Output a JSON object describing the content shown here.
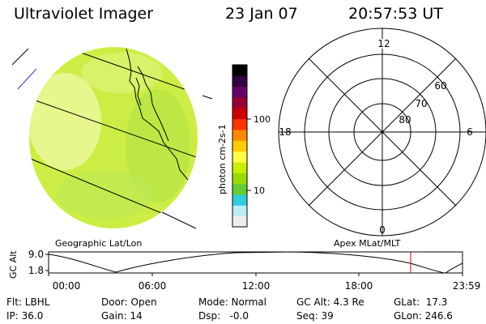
{
  "header": {
    "instrument": "Ultraviolet Imager",
    "date": "23 Jan 07",
    "time": "20:57:53 UT"
  },
  "colorbar": {
    "unit_label": "photon cm-2s-1",
    "tick_labels": [
      "100",
      "10"
    ],
    "colors": [
      "#eeeeee",
      "#bbeeee",
      "#33ccdd",
      "#66cc33",
      "#99dd00",
      "#ccee00",
      "#ffff44",
      "#ffcc00",
      "#ff8800",
      "#ff3300",
      "#cc0000",
      "#990033",
      "#660066",
      "#330044",
      "#000000"
    ]
  },
  "image_panel": {
    "caption": "Geographic Lat/Lon",
    "fill_color": "#ccee44"
  },
  "polar_plot": {
    "caption": "Apex MLat/MLT",
    "mlt_labels": [
      "12",
      "18",
      "6",
      "0"
    ],
    "lat_labels": [
      "60",
      "70",
      "80"
    ]
  },
  "orbit_strip": {
    "ylabel": "GC Alt",
    "y_ticks": [
      "9.0",
      "1.8"
    ],
    "x_ticks": [
      "00:00",
      "06:00",
      "12:00",
      "18:00",
      "23:59"
    ],
    "marker_color": "#cc0000"
  },
  "footer": {
    "flt": "Flt: LBHL",
    "ip": "IP: 36.0",
    "door": "Door: Open",
    "gain": "Gain: 14",
    "mode": "Mode: Normal",
    "dsp": "Dsp:   -0.0",
    "gc_alt": "GC Alt: 4.3 Re",
    "seq": "Seq: 39",
    "glat": "GLat:  17.3",
    "glon": "GLon: 246.6"
  }
}
